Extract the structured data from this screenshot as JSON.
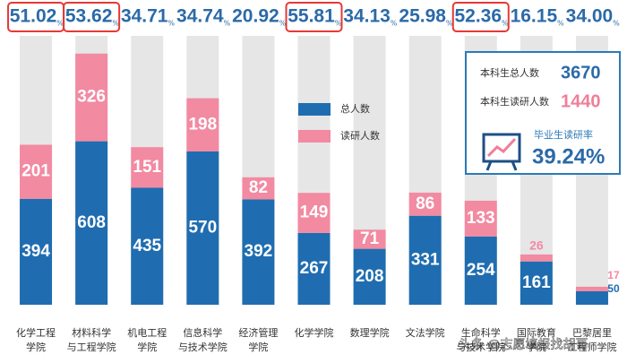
{
  "chart_data": {
    "type": "stacked_bar",
    "categories": [
      [
        "化学工程",
        "学院"
      ],
      [
        "材料科学",
        "与工程学院"
      ],
      [
        "机电工程",
        "学院"
      ],
      [
        "信息科学",
        "与技术学院"
      ],
      [
        "经济管理",
        "学院"
      ],
      [
        "化学学院"
      ],
      [
        "数理学院"
      ],
      [
        "文法学院"
      ],
      [
        "生命科学",
        "与技术学院"
      ],
      [
        "国际教育",
        "学院"
      ],
      [
        "巴黎居里",
        "工程师学院"
      ]
    ],
    "series": [
      {
        "name": "总人数",
        "color": "#1f6db0",
        "values": [
          394,
          608,
          435,
          570,
          392,
          267,
          208,
          331,
          254,
          161,
          50
        ]
      },
      {
        "name": "读研人数",
        "color": "#f28aa2",
        "values": [
          201,
          326,
          151,
          198,
          82,
          149,
          71,
          86,
          133,
          26,
          17
        ]
      }
    ],
    "rates": [
      51.02,
      53.62,
      34.71,
      34.74,
      20.92,
      55.81,
      34.13,
      25.98,
      52.36,
      16.15,
      34.0
    ],
    "rate_labels": [
      "51.02",
      "53.62",
      "34.71",
      "34.74",
      "20.92",
      "55.81",
      "34.13",
      "25.98",
      "52.36",
      "16.15",
      "34.00"
    ],
    "rate_unit": "%",
    "highlighted": [
      0,
      1,
      5,
      8
    ],
    "ylim": [
      0,
      1000
    ],
    "info": {
      "total_label": "本科生总人数",
      "total": "3670",
      "grad_label": "本科生读研人数",
      "grad": "1440",
      "rate_label": "毕业生读研率",
      "rate": "39.24%"
    },
    "watermark": "头条 @志愿填报找胡哥"
  }
}
